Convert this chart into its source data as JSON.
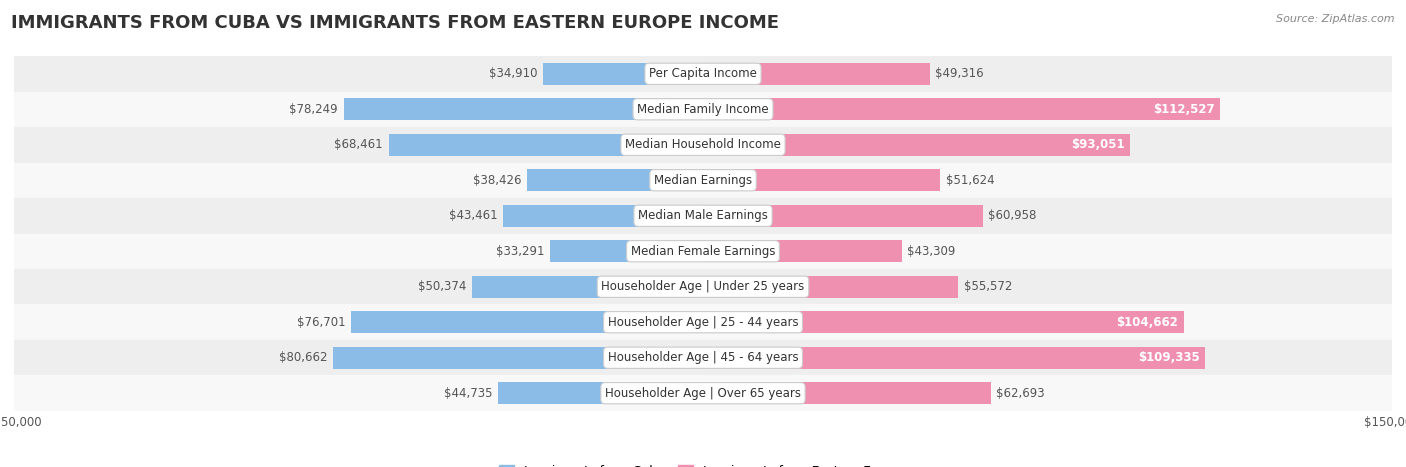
{
  "title": "IMMIGRANTS FROM CUBA VS IMMIGRANTS FROM EASTERN EUROPE INCOME",
  "source": "Source: ZipAtlas.com",
  "categories": [
    "Per Capita Income",
    "Median Family Income",
    "Median Household Income",
    "Median Earnings",
    "Median Male Earnings",
    "Median Female Earnings",
    "Householder Age | Under 25 years",
    "Householder Age | 25 - 44 years",
    "Householder Age | 45 - 64 years",
    "Householder Age | Over 65 years"
  ],
  "cuba_values": [
    34910,
    78249,
    68461,
    38426,
    43461,
    33291,
    50374,
    76701,
    80662,
    44735
  ],
  "eastern_values": [
    49316,
    112527,
    93051,
    51624,
    60958,
    43309,
    55572,
    104662,
    109335,
    62693
  ],
  "cuba_color": "#8BBCE8",
  "eastern_color": "#F090B0",
  "label_color_dark": "#555555",
  "bar_height": 0.62,
  "max_value": 150000,
  "bg_odd_color": "#eeeeee",
  "bg_even_color": "#f8f8f8",
  "title_fontsize": 13,
  "label_fontsize": 8.5,
  "cat_fontsize": 8.5,
  "tick_fontsize": 8.5,
  "legend_fontsize": 9,
  "white_label_threshold": 0.62
}
